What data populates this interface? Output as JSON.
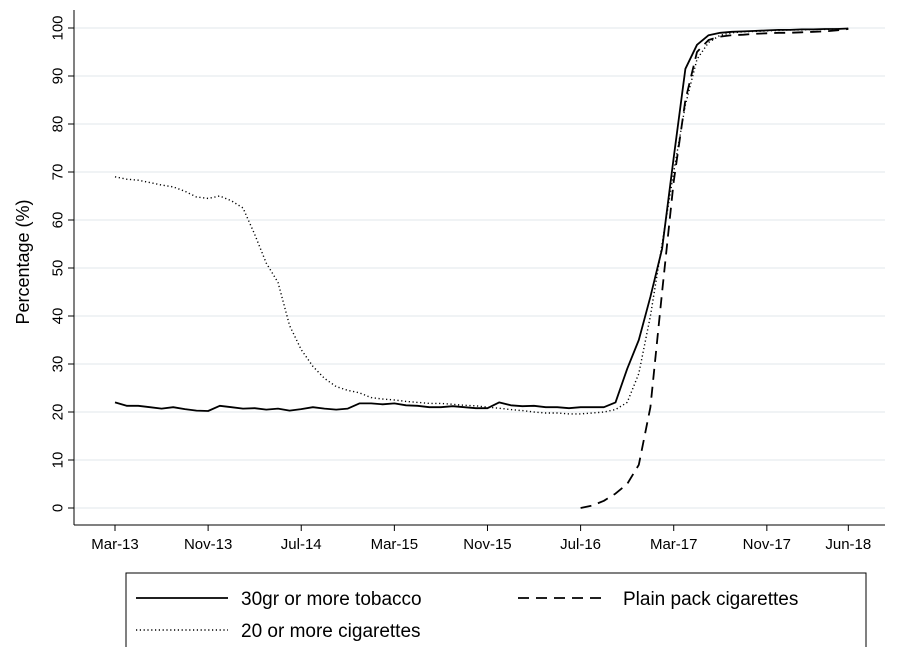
{
  "chart_data": {
    "type": "line",
    "ylabel": "Percentage (%)",
    "xlabel": "",
    "ylim": [
      0,
      100
    ],
    "yticks": [
      0,
      10,
      20,
      30,
      40,
      50,
      60,
      70,
      80,
      90,
      100
    ],
    "x_tick_labels": [
      "Mar-13",
      "Nov-13",
      "Jul-14",
      "Mar-15",
      "Nov-15",
      "Jul-16",
      "Mar-17",
      "Nov-17",
      "Jun-18"
    ],
    "grid": true,
    "legend_position": "bottom",
    "series": [
      {
        "name": "30gr or more tobacco",
        "style": "solid",
        "points": [
          [
            "Mar-13",
            22.0
          ],
          [
            "Apr-13",
            21.3
          ],
          [
            "May-13",
            21.3
          ],
          [
            "Jun-13",
            21.0
          ],
          [
            "Jul-13",
            20.7
          ],
          [
            "Aug-13",
            21.0
          ],
          [
            "Sep-13",
            20.6
          ],
          [
            "Oct-13",
            20.3
          ],
          [
            "Nov-13",
            20.2
          ],
          [
            "Dec-13",
            21.3
          ],
          [
            "Jan-14",
            21.0
          ],
          [
            "Feb-14",
            20.7
          ],
          [
            "Mar-14",
            20.8
          ],
          [
            "Apr-14",
            20.5
          ],
          [
            "May-14",
            20.7
          ],
          [
            "Jun-14",
            20.3
          ],
          [
            "Jul-14",
            20.6
          ],
          [
            "Aug-14",
            21.0
          ],
          [
            "Sep-14",
            20.7
          ],
          [
            "Oct-14",
            20.5
          ],
          [
            "Nov-14",
            20.7
          ],
          [
            "Dec-14",
            21.8
          ],
          [
            "Jan-15",
            21.8
          ],
          [
            "Feb-15",
            21.6
          ],
          [
            "Mar-15",
            21.8
          ],
          [
            "Apr-15",
            21.4
          ],
          [
            "May-15",
            21.3
          ],
          [
            "Jun-15",
            21.0
          ],
          [
            "Jul-15",
            21.0
          ],
          [
            "Aug-15",
            21.2
          ],
          [
            "Sep-15",
            21.0
          ],
          [
            "Oct-15",
            20.8
          ],
          [
            "Nov-15",
            20.8
          ],
          [
            "Dec-15",
            22.0
          ],
          [
            "Jan-16",
            21.4
          ],
          [
            "Feb-16",
            21.2
          ],
          [
            "Mar-16",
            21.3
          ],
          [
            "Apr-16",
            21.0
          ],
          [
            "May-16",
            21.0
          ],
          [
            "Jun-16",
            20.8
          ],
          [
            "Jul-16",
            21.0
          ],
          [
            "Aug-16",
            21.0
          ],
          [
            "Sep-16",
            21.0
          ],
          [
            "Oct-16",
            22.0
          ],
          [
            "Nov-16",
            29.0
          ],
          [
            "Dec-16",
            35.0
          ],
          [
            "Jan-17",
            44.0
          ],
          [
            "Feb-17",
            54.0
          ],
          [
            "Mar-17",
            73.0
          ],
          [
            "Apr-17",
            91.5
          ],
          [
            "May-17",
            96.5
          ],
          [
            "Jun-17",
            98.5
          ],
          [
            "Jul-17",
            99.0
          ],
          [
            "Aug-17",
            99.2
          ],
          [
            "Sep-17",
            99.3
          ],
          [
            "Oct-17",
            99.4
          ],
          [
            "Nov-17",
            99.5
          ],
          [
            "Dec-17",
            99.6
          ],
          [
            "Jan-18",
            99.6
          ],
          [
            "Feb-18",
            99.7
          ],
          [
            "Mar-18",
            99.7
          ],
          [
            "Apr-18",
            99.8
          ],
          [
            "May-18",
            99.8
          ],
          [
            "Jun-18",
            99.9
          ]
        ]
      },
      {
        "name": "Plain pack cigarettes",
        "style": "dashed",
        "points": [
          [
            "Jul-16",
            0.0
          ],
          [
            "Aug-16",
            0.5
          ],
          [
            "Sep-16",
            1.5
          ],
          [
            "Oct-16",
            3.0
          ],
          [
            "Nov-16",
            5.0
          ],
          [
            "Dec-16",
            9.0
          ],
          [
            "Jan-17",
            21.0
          ],
          [
            "Feb-17",
            45.0
          ],
          [
            "Mar-17",
            68.0
          ],
          [
            "Apr-17",
            85.0
          ],
          [
            "May-17",
            95.0
          ],
          [
            "Jun-17",
            97.5
          ],
          [
            "Jul-17",
            98.2
          ],
          [
            "Aug-17",
            98.5
          ],
          [
            "Sep-17",
            98.6
          ],
          [
            "Oct-17",
            98.8
          ],
          [
            "Nov-17",
            98.9
          ],
          [
            "Dec-17",
            99.0
          ],
          [
            "Jan-18",
            99.0
          ],
          [
            "Feb-18",
            99.1
          ],
          [
            "Mar-18",
            99.2
          ],
          [
            "Apr-18",
            99.3
          ],
          [
            "May-18",
            99.5
          ],
          [
            "Jun-18",
            99.8
          ]
        ]
      },
      {
        "name": "20 or more cigarettes",
        "style": "dotted",
        "points": [
          [
            "Mar-13",
            69.0
          ],
          [
            "Apr-13",
            68.5
          ],
          [
            "May-13",
            68.3
          ],
          [
            "Jun-13",
            67.8
          ],
          [
            "Jul-13",
            67.3
          ],
          [
            "Aug-13",
            66.9
          ],
          [
            "Sep-13",
            66.0
          ],
          [
            "Oct-13",
            64.8
          ],
          [
            "Nov-13",
            64.5
          ],
          [
            "Dec-13",
            65.0
          ],
          [
            "Jan-14",
            64.0
          ],
          [
            "Feb-14",
            62.5
          ],
          [
            "Mar-14",
            57.0
          ],
          [
            "Apr-14",
            51.0
          ],
          [
            "May-14",
            47.0
          ],
          [
            "Jun-14",
            38.0
          ],
          [
            "Jul-14",
            33.0
          ],
          [
            "Aug-14",
            29.5
          ],
          [
            "Sep-14",
            27.0
          ],
          [
            "Oct-14",
            25.3
          ],
          [
            "Nov-14",
            24.5
          ],
          [
            "Dec-14",
            24.0
          ],
          [
            "Jan-15",
            23.0
          ],
          [
            "Feb-15",
            22.7
          ],
          [
            "Mar-15",
            22.5
          ],
          [
            "Apr-15",
            22.2
          ],
          [
            "May-15",
            22.0
          ],
          [
            "Jun-15",
            21.8
          ],
          [
            "Jul-15",
            21.8
          ],
          [
            "Aug-15",
            21.6
          ],
          [
            "Sep-15",
            21.4
          ],
          [
            "Oct-15",
            21.3
          ],
          [
            "Nov-15",
            21.0
          ],
          [
            "Dec-15",
            20.8
          ],
          [
            "Jan-16",
            20.5
          ],
          [
            "Feb-16",
            20.3
          ],
          [
            "Mar-16",
            20.0
          ],
          [
            "Apr-16",
            19.8
          ],
          [
            "May-16",
            19.8
          ],
          [
            "Jun-16",
            19.6
          ],
          [
            "Jul-16",
            19.6
          ],
          [
            "Aug-16",
            19.8
          ],
          [
            "Sep-16",
            20.0
          ],
          [
            "Oct-16",
            20.5
          ],
          [
            "Nov-16",
            22.0
          ],
          [
            "Dec-16",
            28.0
          ],
          [
            "Jan-17",
            40.0
          ],
          [
            "Feb-17",
            55.0
          ],
          [
            "Mar-17",
            70.0
          ],
          [
            "Apr-17",
            84.0
          ],
          [
            "May-17",
            93.5
          ],
          [
            "Jun-17",
            97.0
          ],
          [
            "Jul-17",
            98.5
          ],
          [
            "Aug-17",
            99.0
          ],
          [
            "Sep-17",
            99.2
          ],
          [
            "Oct-17",
            99.3
          ],
          [
            "Nov-17",
            99.4
          ],
          [
            "Dec-17",
            99.5
          ],
          [
            "Jan-18",
            99.6
          ],
          [
            "Feb-18",
            99.6
          ],
          [
            "Mar-18",
            99.7
          ],
          [
            "Apr-18",
            99.7
          ],
          [
            "May-18",
            99.8
          ],
          [
            "Jun-18",
            99.9
          ]
        ]
      }
    ]
  }
}
